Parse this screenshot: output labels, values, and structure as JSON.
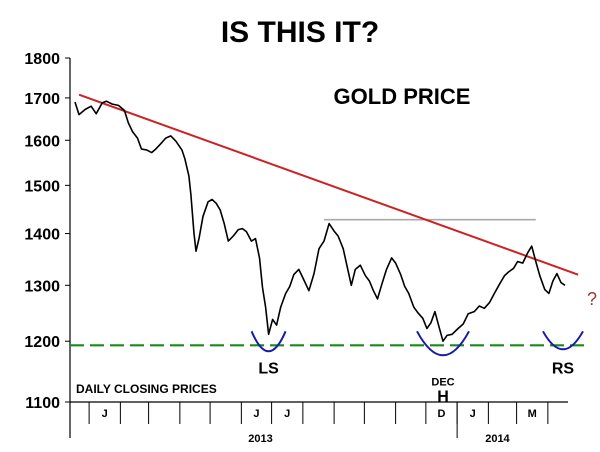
{
  "chart_data": {
    "type": "line",
    "title": "IS THIS IT?",
    "chart_label": "GOLD PRICE",
    "note": "DAILY CLOSING PRICES",
    "scale": "log",
    "ylim": [
      1100,
      1800
    ],
    "y_ticks": [
      1100,
      1200,
      1300,
      1400,
      1500,
      1600,
      1700,
      1800
    ],
    "xlim": [
      "2012-12-18",
      "2014-04-18"
    ],
    "month_ticks": [
      {
        "label": "J",
        "date": "2013-01-01"
      },
      {
        "label": "",
        "date": "2013-02-01"
      },
      {
        "label": "",
        "date": "2013-03-01"
      },
      {
        "label": "",
        "date": "2013-04-01"
      },
      {
        "label": "",
        "date": "2013-05-01"
      },
      {
        "label": "J",
        "date": "2013-06-01"
      },
      {
        "label": "J",
        "date": "2013-07-01"
      },
      {
        "label": "",
        "date": "2013-08-01"
      },
      {
        "label": "",
        "date": "2013-09-01"
      },
      {
        "label": "",
        "date": "2013-10-01"
      },
      {
        "label": "",
        "date": "2013-11-01"
      },
      {
        "label": "D",
        "date": "2013-12-01"
      },
      {
        "label": "J",
        "date": "2014-01-01"
      },
      {
        "label": "",
        "date": "2014-02-01"
      },
      {
        "label": "M",
        "date": "2014-03-01"
      },
      {
        "label": "",
        "date": "2014-04-01"
      }
    ],
    "year_labels": [
      {
        "label": "2013",
        "date": "2013-06-20"
      },
      {
        "label": "2014",
        "date": "2014-02-10"
      }
    ],
    "year_divider_date": "2014-01-01",
    "series": [
      {
        "color": "#000000",
        "points": [
          [
            "2012-12-18",
            1690
          ],
          [
            "2012-12-22",
            1660
          ],
          [
            "2012-12-28",
            1672
          ],
          [
            "2013-01-03",
            1680
          ],
          [
            "2013-01-08",
            1662
          ],
          [
            "2013-01-14",
            1688
          ],
          [
            "2013-01-18",
            1692
          ],
          [
            "2013-01-24",
            1685
          ],
          [
            "2013-01-30",
            1682
          ],
          [
            "2013-02-05",
            1670
          ],
          [
            "2013-02-09",
            1640
          ],
          [
            "2013-02-13",
            1620
          ],
          [
            "2013-02-18",
            1605
          ],
          [
            "2013-02-22",
            1580
          ],
          [
            "2013-02-27",
            1578
          ],
          [
            "2013-03-04",
            1572
          ],
          [
            "2013-03-08",
            1580
          ],
          [
            "2013-03-13",
            1592
          ],
          [
            "2013-03-18",
            1605
          ],
          [
            "2013-03-23",
            1610
          ],
          [
            "2013-03-28",
            1598
          ],
          [
            "2013-04-03",
            1578
          ],
          [
            "2013-04-06",
            1558
          ],
          [
            "2013-04-10",
            1520
          ],
          [
            "2013-04-12",
            1480
          ],
          [
            "2013-04-15",
            1400
          ],
          [
            "2013-04-17",
            1365
          ],
          [
            "2013-04-20",
            1390
          ],
          [
            "2013-04-24",
            1435
          ],
          [
            "2013-04-29",
            1465
          ],
          [
            "2013-05-03",
            1470
          ],
          [
            "2013-05-07",
            1462
          ],
          [
            "2013-05-11",
            1448
          ],
          [
            "2013-05-15",
            1420
          ],
          [
            "2013-05-19",
            1385
          ],
          [
            "2013-05-24",
            1395
          ],
          [
            "2013-05-29",
            1408
          ],
          [
            "2013-06-02",
            1410
          ],
          [
            "2013-06-06",
            1404
          ],
          [
            "2013-06-11",
            1385
          ],
          [
            "2013-06-15",
            1390
          ],
          [
            "2013-06-19",
            1352
          ],
          [
            "2013-06-22",
            1296
          ],
          [
            "2013-06-25",
            1260
          ],
          [
            "2013-06-28",
            1212
          ],
          [
            "2013-07-02",
            1238
          ],
          [
            "2013-07-06",
            1228
          ],
          [
            "2013-07-10",
            1260
          ],
          [
            "2013-07-15",
            1285
          ],
          [
            "2013-07-19",
            1298
          ],
          [
            "2013-07-23",
            1320
          ],
          [
            "2013-07-28",
            1330
          ],
          [
            "2013-08-02",
            1310
          ],
          [
            "2013-08-07",
            1290
          ],
          [
            "2013-08-12",
            1322
          ],
          [
            "2013-08-17",
            1370
          ],
          [
            "2013-08-22",
            1385
          ],
          [
            "2013-08-27",
            1420
          ],
          [
            "2013-09-01",
            1405
          ],
          [
            "2013-09-05",
            1395
          ],
          [
            "2013-09-10",
            1370
          ],
          [
            "2013-09-14",
            1335
          ],
          [
            "2013-09-18",
            1300
          ],
          [
            "2013-09-22",
            1330
          ],
          [
            "2013-09-27",
            1338
          ],
          [
            "2013-10-02",
            1318
          ],
          [
            "2013-10-06",
            1308
          ],
          [
            "2013-10-10",
            1290
          ],
          [
            "2013-10-14",
            1275
          ],
          [
            "2013-10-18",
            1300
          ],
          [
            "2013-10-23",
            1330
          ],
          [
            "2013-10-28",
            1352
          ],
          [
            "2013-11-01",
            1342
          ],
          [
            "2013-11-06",
            1320
          ],
          [
            "2013-11-10",
            1298
          ],
          [
            "2013-11-14",
            1285
          ],
          [
            "2013-11-19",
            1260
          ],
          [
            "2013-11-23",
            1250
          ],
          [
            "2013-11-28",
            1240
          ],
          [
            "2013-12-02",
            1222
          ],
          [
            "2013-12-06",
            1232
          ],
          [
            "2013-12-10",
            1252
          ],
          [
            "2013-12-14",
            1225
          ],
          [
            "2013-12-18",
            1200
          ],
          [
            "2013-12-22",
            1210
          ],
          [
            "2013-12-27",
            1212
          ],
          [
            "2014-01-02",
            1222
          ],
          [
            "2014-01-07",
            1230
          ],
          [
            "2014-01-12",
            1248
          ],
          [
            "2014-01-18",
            1252
          ],
          [
            "2014-01-23",
            1262
          ],
          [
            "2014-01-28",
            1258
          ],
          [
            "2014-02-02",
            1268
          ],
          [
            "2014-02-07",
            1285
          ],
          [
            "2014-02-12",
            1302
          ],
          [
            "2014-02-17",
            1318
          ],
          [
            "2014-02-21",
            1325
          ],
          [
            "2014-02-26",
            1332
          ],
          [
            "2014-03-02",
            1345
          ],
          [
            "2014-03-07",
            1342
          ],
          [
            "2014-03-12",
            1362
          ],
          [
            "2014-03-16",
            1375
          ],
          [
            "2014-03-20",
            1345
          ],
          [
            "2014-03-24",
            1318
          ],
          [
            "2014-03-29",
            1292
          ],
          [
            "2014-04-02",
            1285
          ],
          [
            "2014-04-06",
            1308
          ],
          [
            "2014-04-10",
            1322
          ],
          [
            "2014-04-14",
            1305
          ],
          [
            "2014-04-18",
            1300
          ]
        ]
      }
    ],
    "annotations": {
      "trendline": {
        "color": "#cc2222",
        "start": [
          "2012-12-22",
          1708
        ],
        "end": [
          "2014-05-01",
          1320
        ]
      },
      "neckline": {
        "color": "#aaaaaa",
        "start": [
          "2013-08-22",
          1428
        ],
        "end": [
          "2014-03-20",
          1428
        ]
      },
      "support": {
        "color": "#1a8a1a",
        "style": "dashed",
        "y": 1193
      },
      "shoulders": [
        {
          "label": "LS",
          "date": "2013-06-28",
          "color": "#1a1aaa"
        },
        {
          "label": "H",
          "date": "2013-12-18",
          "color": "#1a1aaa",
          "sub_label": "DEC"
        },
        {
          "label": "RS",
          "date": "2014-04-16",
          "color": "#1a1aaa"
        }
      ],
      "question_mark": {
        "text": "?",
        "color": "#aa3333"
      }
    }
  }
}
